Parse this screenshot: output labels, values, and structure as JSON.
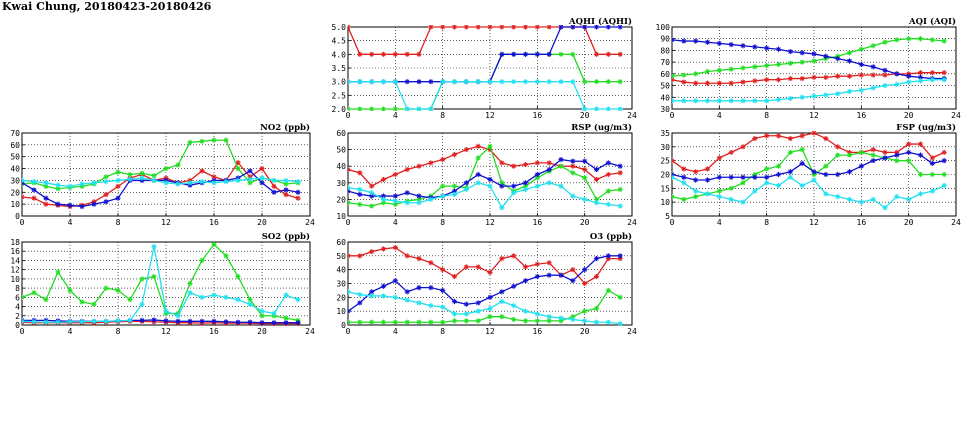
{
  "page": {
    "title": "Kwai Chung, 20180423-20180426"
  },
  "colors": {
    "red": "#e02020",
    "green": "#22dd22",
    "blue": "#1010d0",
    "cyan": "#22e0f0",
    "grid": "#000000"
  },
  "chart_data": [
    {
      "id": "aqhi",
      "type": "line",
      "title": "AQHI (AQHI)",
      "xlim": [
        0,
        24
      ],
      "ylim": [
        2,
        5
      ],
      "xticks": [
        0,
        4,
        8,
        12,
        16,
        20,
        24
      ],
      "yticks": [
        2.0,
        2.5,
        3.0,
        3.5,
        4.0,
        4.5,
        5.0
      ],
      "ytick_labels": [
        "2.0",
        "2.5",
        "3.0",
        "3.5",
        "4.0",
        "4.5",
        "5.0"
      ],
      "series": [
        {
          "color": "red",
          "values": [
            5,
            4,
            4,
            4,
            4,
            4,
            4,
            5,
            5,
            5,
            5,
            5,
            5,
            5,
            5,
            5,
            5,
            5,
            5,
            5,
            5,
            4,
            4,
            4
          ]
        },
        {
          "color": "green",
          "values": [
            2,
            2,
            2,
            2,
            2,
            2,
            2,
            2,
            3,
            3,
            3,
            3,
            3,
            4,
            4,
            4,
            4,
            4,
            4,
            4,
            3,
            3,
            3,
            3
          ]
        },
        {
          "color": "blue",
          "values": [
            3,
            3,
            3,
            3,
            3,
            3,
            3,
            3,
            3,
            3,
            3,
            3,
            3,
            4,
            4,
            4,
            4,
            4,
            5,
            5,
            5,
            5,
            5,
            5
          ]
        },
        {
          "color": "cyan",
          "values": [
            3,
            3,
            3,
            3,
            3,
            2,
            2,
            2,
            3,
            3,
            3,
            3,
            3,
            3,
            3,
            3,
            3,
            3,
            3,
            3,
            2,
            2,
            2,
            2
          ]
        }
      ]
    },
    {
      "id": "aqi",
      "type": "line",
      "title": "AQI (AQI)",
      "xlim": [
        0,
        24
      ],
      "ylim": [
        30,
        100
      ],
      "xticks": [
        0,
        4,
        8,
        12,
        16,
        20,
        24
      ],
      "yticks": [
        30,
        40,
        50,
        60,
        70,
        80,
        90,
        100
      ],
      "ytick_labels": [
        "30",
        "40",
        "50",
        "60",
        "70",
        "80",
        "90",
        "100"
      ],
      "series": [
        {
          "color": "red",
          "values": [
            55,
            53,
            52,
            52,
            52,
            52,
            53,
            54,
            55,
            55,
            56,
            56,
            57,
            57,
            58,
            58,
            59,
            59,
            59,
            60,
            60,
            61,
            61,
            61
          ]
        },
        {
          "color": "green",
          "values": [
            58,
            59,
            60,
            62,
            63,
            64,
            65,
            66,
            67,
            68,
            69,
            70,
            71,
            73,
            75,
            78,
            81,
            84,
            87,
            89,
            90,
            90,
            89,
            88
          ]
        },
        {
          "color": "blue",
          "values": [
            89,
            88,
            88,
            87,
            86,
            85,
            84,
            83,
            82,
            81,
            79,
            78,
            77,
            75,
            73,
            71,
            68,
            66,
            63,
            60,
            58,
            57,
            56,
            56
          ]
        },
        {
          "color": "cyan",
          "values": [
            37,
            37,
            37,
            37,
            37,
            37,
            37,
            37,
            37,
            38,
            39,
            40,
            41,
            42,
            43,
            45,
            46,
            48,
            50,
            51,
            53,
            54,
            55,
            55
          ]
        }
      ]
    },
    {
      "id": "no2",
      "type": "line",
      "title": "NO2 (ppb)",
      "xlim": [
        0,
        24
      ],
      "ylim": [
        0,
        70
      ],
      "xticks": [
        0,
        4,
        8,
        12,
        16,
        20,
        24
      ],
      "yticks": [
        0,
        10,
        20,
        30,
        40,
        50,
        60,
        70
      ],
      "ytick_labels": [
        "0",
        "10",
        "20",
        "30",
        "40",
        "50",
        "60",
        "70"
      ],
      "series": [
        {
          "color": "red",
          "values": [
            16,
            15,
            10,
            9,
            8,
            9,
            12,
            18,
            25,
            32,
            35,
            30,
            32,
            28,
            30,
            38,
            33,
            30,
            45,
            33,
            40,
            25,
            18,
            15
          ]
        },
        {
          "color": "green",
          "values": [
            27,
            28,
            25,
            23,
            24,
            25,
            27,
            33,
            37,
            35,
            36,
            34,
            40,
            43,
            62,
            63,
            64,
            64,
            40,
            28,
            32,
            30,
            27,
            28
          ]
        },
        {
          "color": "blue",
          "values": [
            28,
            22,
            15,
            10,
            9,
            8,
            10,
            12,
            15,
            30,
            30,
            30,
            30,
            28,
            26,
            28,
            30,
            30,
            32,
            38,
            28,
            20,
            22,
            20
          ]
        },
        {
          "color": "cyan",
          "values": [
            30,
            29,
            28,
            26,
            25,
            27,
            28,
            29,
            30,
            31,
            32,
            30,
            28,
            27,
            28,
            29,
            28,
            29,
            30,
            31,
            32,
            30,
            30,
            29
          ]
        }
      ]
    },
    {
      "id": "rsp",
      "type": "line",
      "title": "RSP (ug/m3)",
      "xlim": [
        0,
        24
      ],
      "ylim": [
        10,
        60
      ],
      "xticks": [
        0,
        4,
        8,
        12,
        16,
        20,
        24
      ],
      "yticks": [
        10,
        20,
        30,
        40,
        50,
        60
      ],
      "ytick_labels": [
        "10",
        "20",
        "30",
        "40",
        "50",
        "60"
      ],
      "series": [
        {
          "color": "red",
          "values": [
            38,
            36,
            28,
            32,
            35,
            38,
            40,
            42,
            44,
            47,
            50,
            52,
            50,
            42,
            40,
            41,
            42,
            42,
            40,
            40,
            38,
            32,
            35,
            36
          ]
        },
        {
          "color": "green",
          "values": [
            18,
            17,
            16,
            18,
            17,
            19,
            20,
            22,
            28,
            28,
            27,
            45,
            52,
            30,
            25,
            28,
            33,
            37,
            40,
            36,
            33,
            20,
            25,
            26
          ]
        },
        {
          "color": "blue",
          "values": [
            25,
            23,
            22,
            22,
            22,
            24,
            22,
            21,
            22,
            25,
            30,
            35,
            32,
            28,
            28,
            30,
            35,
            38,
            44,
            43,
            43,
            38,
            42,
            40
          ]
        },
        {
          "color": "cyan",
          "values": [
            27,
            26,
            24,
            20,
            19,
            18,
            18,
            20,
            22,
            23,
            26,
            30,
            28,
            15,
            24,
            26,
            28,
            30,
            28,
            22,
            20,
            18,
            17,
            16
          ]
        }
      ]
    },
    {
      "id": "fsp",
      "type": "line",
      "title": "FSP (ug/m3)",
      "xlim": [
        0,
        24
      ],
      "ylim": [
        5,
        35
      ],
      "xticks": [
        0,
        4,
        8,
        12,
        16,
        20,
        24
      ],
      "yticks": [
        5,
        10,
        15,
        20,
        25,
        30,
        35
      ],
      "ytick_labels": [
        "5",
        "10",
        "15",
        "20",
        "25",
        "30",
        "35"
      ],
      "series": [
        {
          "color": "red",
          "values": [
            25,
            22,
            21,
            22,
            26,
            28,
            30,
            33,
            34,
            34,
            33,
            34,
            35,
            33,
            30,
            28,
            28,
            29,
            28,
            28,
            31,
            31,
            26,
            28
          ]
        },
        {
          "color": "green",
          "values": [
            12,
            11,
            12,
            13,
            14,
            15,
            17,
            20,
            22,
            23,
            28,
            29,
            20,
            23,
            27,
            27,
            28,
            27,
            26,
            25,
            25,
            20,
            20,
            20
          ]
        },
        {
          "color": "blue",
          "values": [
            20,
            19,
            18,
            18,
            19,
            19,
            19,
            19,
            19,
            20,
            21,
            24,
            21,
            20,
            20,
            21,
            23,
            25,
            26,
            27,
            28,
            27,
            24,
            25
          ]
        },
        {
          "color": "cyan",
          "values": [
            19,
            17,
            14,
            13,
            12,
            11,
            10,
            14,
            17,
            16,
            19,
            16,
            18,
            13,
            12,
            11,
            10,
            11,
            8,
            12,
            11,
            13,
            14,
            16
          ]
        }
      ]
    },
    {
      "id": "so2",
      "type": "line",
      "title": "SO2 (ppb)",
      "xlim": [
        0,
        24
      ],
      "ylim": [
        0,
        18
      ],
      "xticks": [
        0,
        4,
        8,
        12,
        16,
        20,
        24
      ],
      "yticks": [
        0,
        2,
        4,
        6,
        8,
        10,
        12,
        14,
        16,
        18
      ],
      "ytick_labels": [
        "0",
        "2",
        "4",
        "6",
        "8",
        "10",
        "12",
        "14",
        "16",
        "18"
      ],
      "series": [
        {
          "color": "red",
          "values": [
            0.6,
            0.5,
            0.5,
            0.5,
            0.5,
            0.5,
            0.5,
            0.6,
            0.7,
            0.8,
            0.8,
            0.7,
            0.6,
            0.5,
            0.5,
            0.4,
            0.5,
            0.4,
            0.4,
            0.4,
            0.3,
            0.3,
            0.3,
            0.3
          ]
        },
        {
          "color": "green",
          "values": [
            6,
            7,
            5.5,
            11.5,
            7.5,
            5,
            4.5,
            8,
            7.5,
            5.5,
            10,
            10.5,
            2.5,
            2.5,
            9,
            14,
            17.5,
            15,
            10.5,
            5.5,
            2,
            2,
            1.5,
            1
          ]
        },
        {
          "color": "blue",
          "values": [
            1,
            1,
            1,
            0.9,
            0.8,
            0.8,
            0.8,
            0.8,
            0.9,
            1,
            1,
            1.1,
            0.9,
            0.8,
            0.8,
            0.8,
            0.8,
            0.7,
            0.6,
            0.6,
            0.5,
            0.5,
            0.5,
            0.5
          ]
        },
        {
          "color": "cyan",
          "values": [
            0.8,
            0.7,
            0.6,
            0.6,
            0.7,
            0.7,
            0.8,
            0.8,
            0.9,
            1,
            4.5,
            17,
            3,
            2,
            7,
            6,
            6.5,
            6,
            5.5,
            4.5,
            3,
            2.5,
            6.5,
            5.5
          ]
        }
      ]
    },
    {
      "id": "o3",
      "type": "line",
      "title": "O3 (ppb)",
      "xlim": [
        0,
        24
      ],
      "ylim": [
        0,
        60
      ],
      "xticks": [
        0,
        4,
        8,
        12,
        16,
        20,
        24
      ],
      "yticks": [
        0,
        10,
        20,
        30,
        40,
        50,
        60
      ],
      "ytick_labels": [
        "0",
        "10",
        "20",
        "30",
        "40",
        "50",
        "60"
      ],
      "series": [
        {
          "color": "red",
          "values": [
            50,
            50,
            53,
            55,
            56,
            50,
            48,
            45,
            40,
            35,
            42,
            42,
            38,
            48,
            50,
            42,
            44,
            45,
            36,
            40,
            30,
            35,
            48,
            48
          ]
        },
        {
          "color": "green",
          "values": [
            2,
            2,
            2,
            2,
            2,
            2,
            2,
            2,
            2,
            3,
            3,
            3,
            6,
            6,
            4,
            3,
            3,
            3,
            3,
            6,
            10,
            12,
            25,
            20
          ]
        },
        {
          "color": "blue",
          "values": [
            10,
            16,
            24,
            28,
            32,
            24,
            27,
            27,
            25,
            17,
            15,
            16,
            20,
            24,
            28,
            32,
            35,
            36,
            36,
            32,
            40,
            48,
            50,
            50
          ]
        },
        {
          "color": "cyan",
          "values": [
            24,
            22,
            21,
            21,
            20,
            18,
            16,
            14,
            13,
            8,
            8,
            10,
            12,
            17,
            14,
            10,
            8,
            6,
            5,
            4,
            3,
            2,
            2,
            1
          ]
        }
      ]
    }
  ]
}
